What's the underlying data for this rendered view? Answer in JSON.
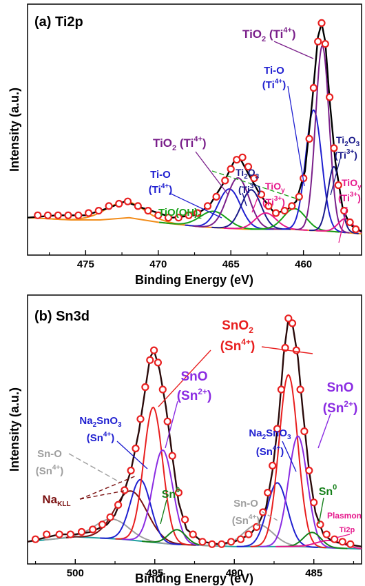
{
  "chart_data": [
    {
      "type": "line",
      "panel_label": "(a) Ti2p",
      "xlabel": "Binding Energy (eV)",
      "ylabel": "Intensity (a.u.)",
      "xlim": [
        479,
        456
      ],
      "ylim": [
        0,
        1
      ],
      "x_reversed": true,
      "xticks": [
        475,
        470,
        465,
        460
      ],
      "xtick_labels": [
        "475",
        "470",
        "465",
        "460"
      ],
      "grid": false,
      "legend": "none",
      "series": [
        {
          "role": "background",
          "color": "#f28c1a",
          "points": [
            [
              479,
              0.12
            ],
            [
              476,
              0.11
            ],
            [
              474,
              0.11
            ],
            [
              472,
              0.12
            ],
            [
              470,
              0.1
            ],
            [
              467,
              0.08
            ],
            [
              464,
              0.07
            ],
            [
              461,
              0.07
            ],
            [
              458,
              0.06
            ],
            [
              456,
              0.05
            ]
          ]
        },
        {
          "role": "component",
          "color": "#f28c1a",
          "center": 472.3,
          "height": 0.07,
          "fwhm": 3.2
        },
        {
          "role": "component",
          "color": "#15a015",
          "center": 466.2,
          "height": 0.07,
          "fwhm": 2.2
        },
        {
          "role": "component",
          "color": "#1f1fd0",
          "center": 465.1,
          "height": 0.17,
          "fwhm": 1.8
        },
        {
          "role": "component",
          "color": "#7a1f8a",
          "center": 464.5,
          "height": 0.22,
          "fwhm": 1.8
        },
        {
          "role": "component",
          "color": "#1a1a8a",
          "center": 463.6,
          "height": 0.17,
          "fwhm": 1.6
        },
        {
          "role": "component",
          "color": "#e6198c",
          "center": 462.6,
          "height": 0.07,
          "fwhm": 1.7
        },
        {
          "role": "component",
          "color": "#15a015",
          "center": 460.6,
          "height": 0.09,
          "fwhm": 1.8
        },
        {
          "role": "component",
          "color": "#1f1fd0",
          "center": 459.3,
          "height": 0.52,
          "fwhm": 1.3
        },
        {
          "role": "component",
          "color": "#7a1f8a",
          "center": 458.7,
          "height": 0.8,
          "fwhm": 1.1
        },
        {
          "role": "component",
          "color": "#1a1a8a",
          "center": 457.9,
          "height": 0.28,
          "fwhm": 1.0
        },
        {
          "role": "component",
          "color": "#e6198c",
          "center": 457.1,
          "height": 0.06,
          "fwhm": 1.2
        },
        {
          "role": "envelope",
          "color": "#000000",
          "points": [
            [
              479,
              0.12
            ],
            [
              477,
              0.13
            ],
            [
              475,
              0.13
            ],
            [
              473.5,
              0.16
            ],
            [
              472.3,
              0.19
            ],
            [
              471,
              0.16
            ],
            [
              469,
              0.12
            ],
            [
              467.5,
              0.13
            ],
            [
              466.5,
              0.17
            ],
            [
              465.5,
              0.27
            ],
            [
              464.8,
              0.36
            ],
            [
              464.4,
              0.38
            ],
            [
              463.8,
              0.31
            ],
            [
              463,
              0.22
            ],
            [
              462,
              0.14
            ],
            [
              461.2,
              0.15
            ],
            [
              460.5,
              0.19
            ],
            [
              459.9,
              0.32
            ],
            [
              459.4,
              0.62
            ],
            [
              459,
              0.9
            ],
            [
              458.75,
              0.96
            ],
            [
              458.5,
              0.88
            ],
            [
              458.2,
              0.63
            ],
            [
              457.8,
              0.36
            ],
            [
              457.3,
              0.16
            ],
            [
              456.8,
              0.09
            ],
            [
              456,
              0.06
            ]
          ]
        },
        {
          "role": "data",
          "marker": "circle",
          "color": "#e82020",
          "points": [
            [
              478.3,
              0.13
            ],
            [
              477.6,
              0.13
            ],
            [
              476.9,
              0.13
            ],
            [
              476.2,
              0.13
            ],
            [
              475.5,
              0.13
            ],
            [
              474.8,
              0.14
            ],
            [
              474.1,
              0.15
            ],
            [
              473.4,
              0.17
            ],
            [
              472.7,
              0.18
            ],
            [
              472.1,
              0.19
            ],
            [
              471.4,
              0.17
            ],
            [
              470.7,
              0.15
            ],
            [
              470.0,
              0.13
            ],
            [
              469.3,
              0.12
            ],
            [
              468.6,
              0.12
            ],
            [
              467.9,
              0.13
            ],
            [
              467.3,
              0.14
            ],
            [
              466.6,
              0.17
            ],
            [
              466.0,
              0.21
            ],
            [
              465.4,
              0.28
            ],
            [
              465.0,
              0.33
            ],
            [
              464.6,
              0.37
            ],
            [
              464.2,
              0.38
            ],
            [
              463.8,
              0.34
            ],
            [
              463.4,
              0.29
            ],
            [
              462.9,
              0.22
            ],
            [
              462.4,
              0.17
            ],
            [
              461.9,
              0.14
            ],
            [
              461.3,
              0.15
            ],
            [
              460.8,
              0.17
            ],
            [
              460.3,
              0.21
            ],
            [
              460.0,
              0.29
            ],
            [
              459.6,
              0.46
            ],
            [
              459.3,
              0.68
            ],
            [
              459.0,
              0.88
            ],
            [
              458.75,
              0.96
            ],
            [
              458.5,
              0.87
            ],
            [
              458.2,
              0.64
            ],
            [
              457.9,
              0.42
            ],
            [
              457.6,
              0.26
            ],
            [
              457.2,
              0.15
            ],
            [
              456.8,
              0.1
            ],
            [
              456.4,
              0.07
            ]
          ]
        }
      ]
    },
    {
      "type": "line",
      "panel_label": "(b) Sn3d",
      "xlabel": "Binding Energy (eV)",
      "ylabel": "Intensity (a.u.)",
      "xlim": [
        503,
        482
      ],
      "ylim": [
        0,
        1
      ],
      "x_reversed": true,
      "xticks": [
        500,
        495,
        490,
        485
      ],
      "xtick_labels": [
        "500",
        "495",
        "490",
        "485"
      ],
      "grid": false,
      "legend": "none",
      "series": [
        {
          "role": "background",
          "color": "#20a0a0",
          "points": [
            [
              503,
              0.04
            ],
            [
              500,
              0.06
            ],
            [
              497,
              0.05
            ],
            [
              494,
              0.03
            ],
            [
              490,
              0.02
            ],
            [
              486,
              0.02
            ],
            [
              482,
              0.01
            ]
          ]
        },
        {
          "role": "component",
          "color": "#9e9e9e",
          "center": 497.7,
          "height": 0.08,
          "fwhm": 2.5
        },
        {
          "role": "component",
          "color": "#7a1010",
          "center": 496.5,
          "height": 0.2,
          "fwhm": 2.4
        },
        {
          "role": "component",
          "color": "#1f1fd0",
          "center": 495.9,
          "height": 0.25,
          "fwhm": 1.5
        },
        {
          "role": "component",
          "color": "#e81e1e",
          "center": 495.1,
          "height": 0.55,
          "fwhm": 1.4
        },
        {
          "role": "component",
          "color": "#8a2be2",
          "center": 494.5,
          "height": 0.38,
          "fwhm": 1.5
        },
        {
          "role": "component",
          "color": "#15801a",
          "center": 493.6,
          "height": 0.06,
          "fwhm": 1.3
        },
        {
          "role": "component",
          "color": "#9e9e9e",
          "center": 488.5,
          "height": 0.09,
          "fwhm": 2.2
        },
        {
          "role": "component",
          "color": "#1f1fd0",
          "center": 487.3,
          "height": 0.26,
          "fwhm": 1.5
        },
        {
          "role": "component",
          "color": "#e81e1e",
          "center": 486.6,
          "height": 0.7,
          "fwhm": 1.4
        },
        {
          "role": "component",
          "color": "#8a2be2",
          "center": 486.0,
          "height": 0.45,
          "fwhm": 1.4
        },
        {
          "role": "component",
          "color": "#15801a",
          "center": 485.1,
          "height": 0.06,
          "fwhm": 1.3
        },
        {
          "role": "component",
          "color": "#e6198c",
          "center": 484.0,
          "height": 0.03,
          "fwhm": 2.0
        },
        {
          "role": "envelope",
          "color": "#2a0a0a",
          "points": [
            [
              503,
              0.04
            ],
            [
              501,
              0.07
            ],
            [
              500,
              0.07
            ],
            [
              499,
              0.08
            ],
            [
              498,
              0.11
            ],
            [
              497.5,
              0.15
            ],
            [
              497,
              0.23
            ],
            [
              496.5,
              0.33
            ],
            [
              496,
              0.49
            ],
            [
              495.6,
              0.66
            ],
            [
              495.3,
              0.79
            ],
            [
              495.05,
              0.82
            ],
            [
              494.7,
              0.74
            ],
            [
              494.3,
              0.59
            ],
            [
              493.9,
              0.39
            ],
            [
              493.5,
              0.2
            ],
            [
              493,
              0.09
            ],
            [
              492,
              0.04
            ],
            [
              491,
              0.03
            ],
            [
              490,
              0.04
            ],
            [
              489,
              0.07
            ],
            [
              488.5,
              0.11
            ],
            [
              488,
              0.18
            ],
            [
              487.6,
              0.33
            ],
            [
              487.2,
              0.55
            ],
            [
              486.9,
              0.8
            ],
            [
              486.6,
              0.95
            ],
            [
              486.35,
              0.93
            ],
            [
              486,
              0.79
            ],
            [
              485.7,
              0.58
            ],
            [
              485.3,
              0.33
            ],
            [
              484.9,
              0.16
            ],
            [
              484.4,
              0.07
            ],
            [
              483.8,
              0.04
            ],
            [
              482,
              0.02
            ]
          ]
        },
        {
          "role": "data",
          "marker": "circle",
          "color": "#e82020",
          "points": [
            [
              502.5,
              0.05
            ],
            [
              501.8,
              0.07
            ],
            [
              501.0,
              0.07
            ],
            [
              500.3,
              0.07
            ],
            [
              499.6,
              0.08
            ],
            [
              498.9,
              0.09
            ],
            [
              498.3,
              0.11
            ],
            [
              497.8,
              0.14
            ],
            [
              497.3,
              0.19
            ],
            [
              496.9,
              0.25
            ],
            [
              496.5,
              0.33
            ],
            [
              496.2,
              0.42
            ],
            [
              495.9,
              0.54
            ],
            [
              495.6,
              0.67
            ],
            [
              495.3,
              0.78
            ],
            [
              495.05,
              0.82
            ],
            [
              494.8,
              0.77
            ],
            [
              494.5,
              0.66
            ],
            [
              494.2,
              0.53
            ],
            [
              493.9,
              0.39
            ],
            [
              493.5,
              0.24
            ],
            [
              493.1,
              0.13
            ],
            [
              492.6,
              0.07
            ],
            [
              492.0,
              0.04
            ],
            [
              491.4,
              0.03
            ],
            [
              490.8,
              0.03
            ],
            [
              490.2,
              0.04
            ],
            [
              489.6,
              0.05
            ],
            [
              489.1,
              0.07
            ],
            [
              488.6,
              0.1
            ],
            [
              488.2,
              0.16
            ],
            [
              487.9,
              0.24
            ],
            [
              487.6,
              0.35
            ],
            [
              487.3,
              0.5
            ],
            [
              487.05,
              0.66
            ],
            [
              486.8,
              0.83
            ],
            [
              486.6,
              0.95
            ],
            [
              486.35,
              0.93
            ],
            [
              486.1,
              0.82
            ],
            [
              485.85,
              0.66
            ],
            [
              485.6,
              0.49
            ],
            [
              485.3,
              0.33
            ],
            [
              485.0,
              0.2
            ],
            [
              484.6,
              0.11
            ],
            [
              484.2,
              0.07
            ],
            [
              483.7,
              0.05
            ],
            [
              483.2,
              0.04
            ],
            [
              482.7,
              0.03
            ]
          ]
        }
      ]
    }
  ],
  "annotations": {
    "a": {
      "tio2_top": {
        "main": "TiO",
        "sub": "2",
        "mid": " (Ti",
        "sup": "4+",
        "end": ")"
      },
      "tio_right": {
        "line1": "Ti-O",
        "l2a": "(Ti",
        "l2sup": "4+",
        "l2b": ")"
      },
      "ti2o3_right": {
        "main": "Ti",
        "sub1": "2",
        "mid": "O",
        "sub2": "3",
        "l2a": "(Ti",
        "l2sup": "3+",
        "l2b": ")"
      },
      "tioy_right": {
        "main": "TiO",
        "sub": "y",
        "l2a": "(Ti",
        "l2sup": "3+",
        "l2b": ")"
      },
      "tio2_mid": {
        "main": "TiO",
        "sub": "2",
        "mid": " (Ti",
        "sup": "4+",
        "end": ")"
      },
      "ti2o3_mid": {
        "main": "Ti",
        "sub1": "2",
        "mid": "O",
        "sub2": "3",
        "l2a": "(Ti",
        "l2sup": "3+",
        "l2b": ")"
      },
      "tio_left": {
        "line1": "Ti-O",
        "l2a": "(Ti",
        "l2sup": "4+",
        "l2b": ")"
      },
      "tioy_mid": {
        "main": "TiO",
        "sub": "y",
        "l2a": "(Ti",
        "l2sup": "3+",
        "l2b": ")"
      },
      "tiooh": {
        "main": "TiO(OH)",
        "sub": "2"
      }
    },
    "b": {
      "sno2": {
        "main": "SnO",
        "sub": "2",
        "l2a": "(Sn",
        "l2sup": "4+",
        "l2b": ")"
      },
      "sno_left": {
        "main": "SnO",
        "l2a": "(Sn",
        "l2sup": "2+",
        "l2b": ")"
      },
      "sno_right": {
        "main": "SnO",
        "l2a": "(Sn",
        "l2sup": "2+",
        "l2b": ")"
      },
      "na2sno3_left": {
        "a": "Na",
        "s1": "2",
        "b": "SnO",
        "s2": "3",
        "l2a": "(Sn",
        "l2sup": "4+",
        "l2b": ")"
      },
      "na2sno3_right": {
        "a": "Na",
        "s1": "2",
        "b": "SnO",
        "s2": "3",
        "l2a": "(Sn",
        "l2sup": "4+",
        "l2b": ")"
      },
      "sno_gray_left": {
        "line1": "Sn-O",
        "l2a": "(Sn",
        "l2sup": "4+",
        "l2b": ")"
      },
      "sno_gray_mid": {
        "line1": "Sn-O",
        "l2a": "(Sn",
        "l2sup": "4+",
        "l2b": ")"
      },
      "na_kll": {
        "main": "Na",
        "sub": "KLL"
      },
      "sn0_left": {
        "main": "Sn",
        "sup": "0"
      },
      "sn0_right": {
        "main": "Sn",
        "sup": "0"
      },
      "plasmon": {
        "line1": "Plasmon",
        "line2": "Ti2p"
      }
    }
  }
}
